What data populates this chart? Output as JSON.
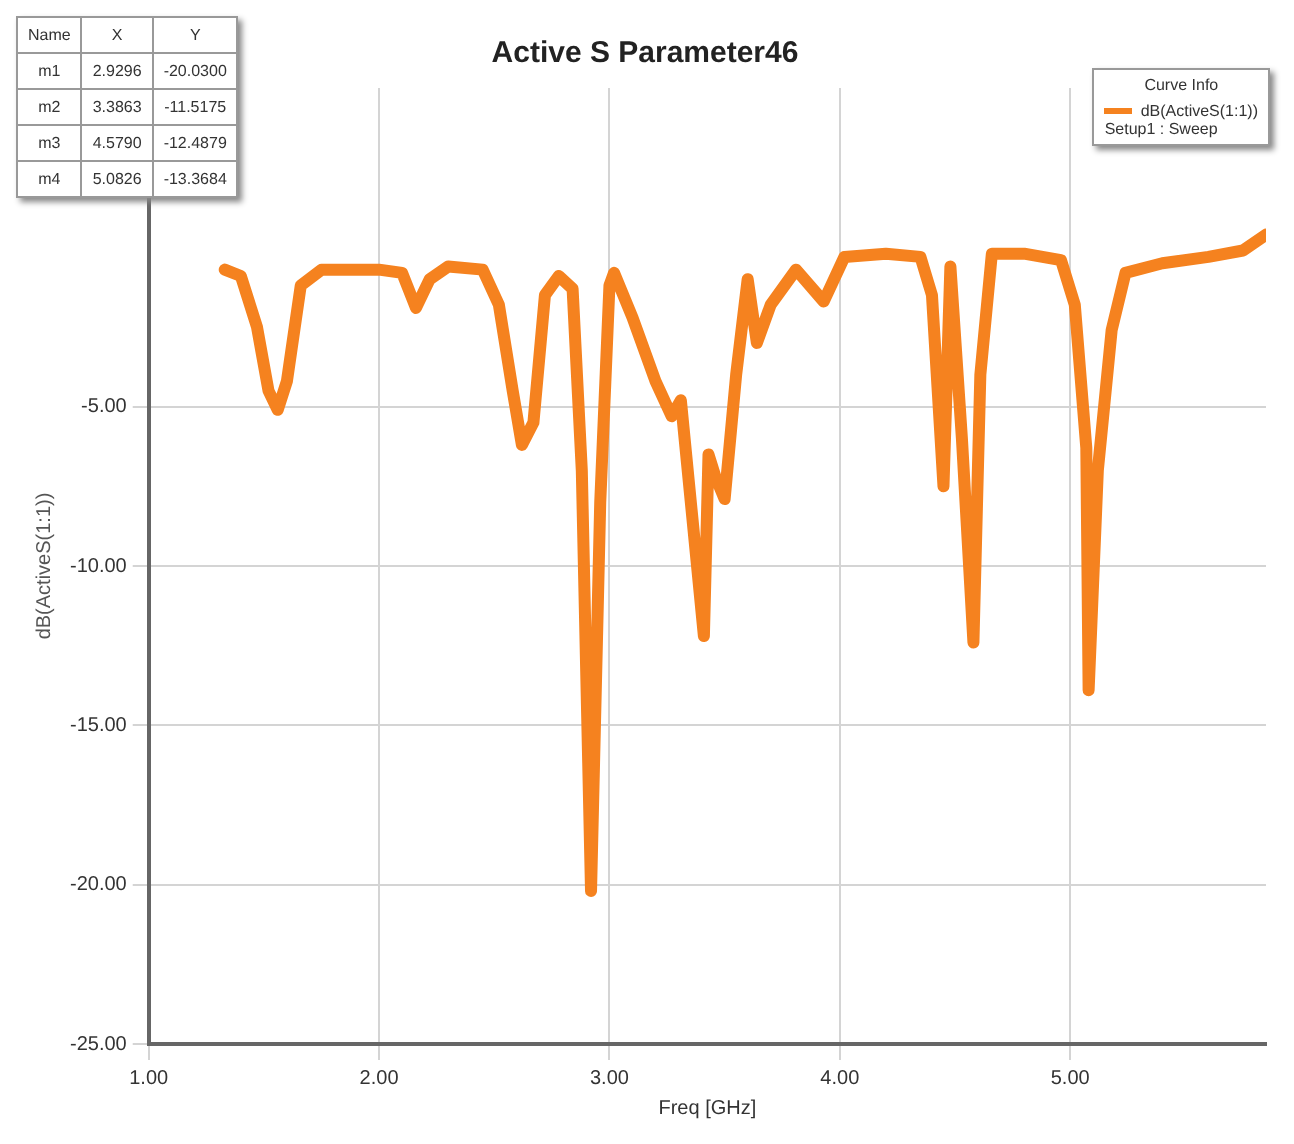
{
  "chart_data": {
    "type": "line",
    "title": "Active S Parameter46",
    "xlabel": "Freq [GHz]",
    "ylabel": "dB(ActiveS(1:1))",
    "legend_title": "Curve Info",
    "legend": "top right",
    "grid": true,
    "marker": "none",
    "line_style": "solid",
    "xlim": [
      1,
      5.85
    ],
    "xticks": [
      {
        "value": 1,
        "label": "1.00"
      },
      {
        "value": 2,
        "label": "2.00"
      },
      {
        "value": 3,
        "label": "3.00"
      },
      {
        "value": 4,
        "label": "4.00"
      },
      {
        "value": 5,
        "label": "5.00"
      }
    ],
    "ylim": [
      -25,
      5
    ],
    "yticks": [
      {
        "value": -25,
        "label": "-25.00"
      },
      {
        "value": -20,
        "label": "-20.00"
      },
      {
        "value": -15,
        "label": "-15.00"
      },
      {
        "value": -10,
        "label": "-10.00"
      },
      {
        "value": -5,
        "label": "-5.00"
      }
    ],
    "annotations": [
      "Name",
      "X",
      "Y",
      "m1",
      "2.9296",
      "-20.0300",
      "m2",
      "3.3863",
      "-11.5175",
      "m3",
      "4.5790",
      "-12.4879",
      "m4",
      "5.0826",
      "-13.3684",
      "Setup1 : Sweep"
    ],
    "series": [
      {
        "name": "dB(ActiveS(1:1))",
        "color": "#f5821f",
        "x": [
          1.33,
          1.4,
          1.47,
          1.52,
          1.56,
          1.6,
          1.66,
          1.75,
          2.0,
          2.1,
          2.16,
          2.22,
          2.3,
          2.45,
          2.52,
          2.58,
          2.62,
          2.67,
          2.72,
          2.78,
          2.84,
          2.88,
          2.92,
          2.96,
          3.0,
          3.02,
          3.1,
          3.2,
          3.27,
          3.31,
          3.36,
          3.41,
          3.43,
          3.46,
          3.5,
          3.55,
          3.6,
          3.64,
          3.7,
          3.81,
          3.93,
          4.02,
          4.2,
          4.35,
          4.4,
          4.45,
          4.48,
          4.53,
          4.58,
          4.61,
          4.66,
          4.8,
          4.96,
          5.02,
          5.07,
          5.08,
          5.12,
          5.18,
          5.24,
          5.4,
          5.6,
          5.75,
          5.85
        ],
        "values": [
          -0.7,
          -0.9,
          -2.5,
          -4.5,
          -5.1,
          -4.2,
          -1.2,
          -0.7,
          -0.7,
          -0.8,
          -1.9,
          -1.0,
          -0.6,
          -0.7,
          -1.8,
          -4.5,
          -6.2,
          -5.5,
          -1.5,
          -0.9,
          -1.3,
          -7,
          -20.2,
          -8,
          -1.2,
          -0.8,
          -2.2,
          -4.2,
          -5.3,
          -4.8,
          -8.5,
          -12.2,
          -6.5,
          -7.2,
          -7.9,
          -4,
          -1.0,
          -3.0,
          -1.8,
          -0.7,
          -1.7,
          -0.3,
          -0.2,
          -0.3,
          -1.5,
          -7.5,
          -0.6,
          -6,
          -12.4,
          -4,
          -0.2,
          -0.2,
          -0.4,
          -1.8,
          -6.3,
          -13.9,
          -7,
          -2.6,
          -0.8,
          -0.5,
          -0.3,
          -0.1,
          0.4
        ]
      }
    ]
  }
}
